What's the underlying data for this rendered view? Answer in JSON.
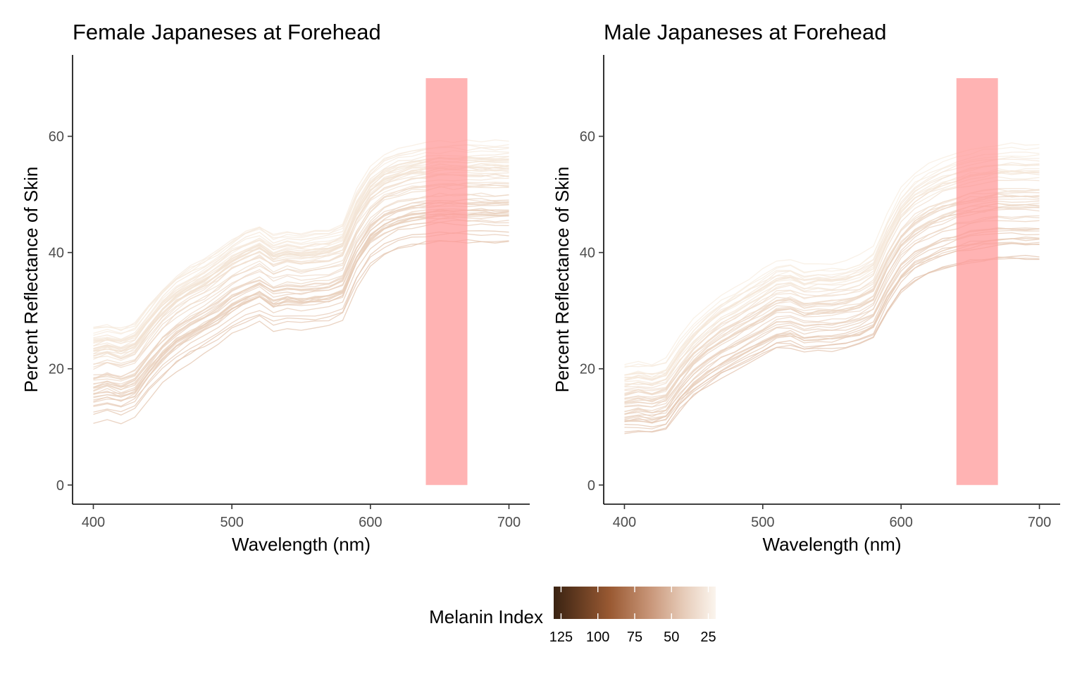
{
  "chart_data": [
    {
      "type": "line",
      "title": "Female Japaneses at Forehead",
      "xlabel": "Wavelength (nm)",
      "ylabel": "Percent Reflectance of Skin",
      "xlim": [
        385,
        715
      ],
      "ylim": [
        -3.3,
        74
      ],
      "x_ticks": [
        400,
        500,
        600,
        700
      ],
      "y_ticks": [
        0,
        20,
        40,
        60
      ],
      "grid": false,
      "highlight_band": {
        "x": [
          640,
          670
        ],
        "y": [
          0,
          70
        ],
        "color": "#ff9999"
      },
      "series_count_estimate": 60,
      "series_range": {
        "x": [
          400,
          700
        ],
        "y_at_400": [
          10,
          28
        ],
        "y_at_700": [
          39.5,
          60.5
        ]
      }
    },
    {
      "type": "line",
      "title": "Male Japaneses at Forehead",
      "xlabel": "Wavelength (nm)",
      "ylabel": "Percent Reflectance of Skin",
      "xlim": [
        385,
        715
      ],
      "ylim": [
        -3.3,
        74
      ],
      "x_ticks": [
        400,
        500,
        600,
        700
      ],
      "y_ticks": [
        0,
        20,
        40,
        60
      ],
      "grid": false,
      "highlight_band": {
        "x": [
          640,
          670
        ],
        "y": [
          0,
          70
        ],
        "color": "#ff9999"
      },
      "series_count_estimate": 50,
      "series_range": {
        "x": [
          400,
          700
        ],
        "y_at_400": [
          8,
          21
        ],
        "y_at_700": [
          37,
          59.5
        ]
      }
    }
  ],
  "legend": {
    "title": "Melanin Index",
    "position": "bottom",
    "ticks": [
      "125",
      "100",
      "75",
      "50",
      "25"
    ],
    "tick_values": [
      125,
      100,
      75,
      50,
      25
    ],
    "range": [
      130,
      20
    ],
    "colors": [
      "#3a2312",
      "#9a5a33",
      "#c9977a",
      "#e6cbb8",
      "#fbf5ee"
    ]
  }
}
